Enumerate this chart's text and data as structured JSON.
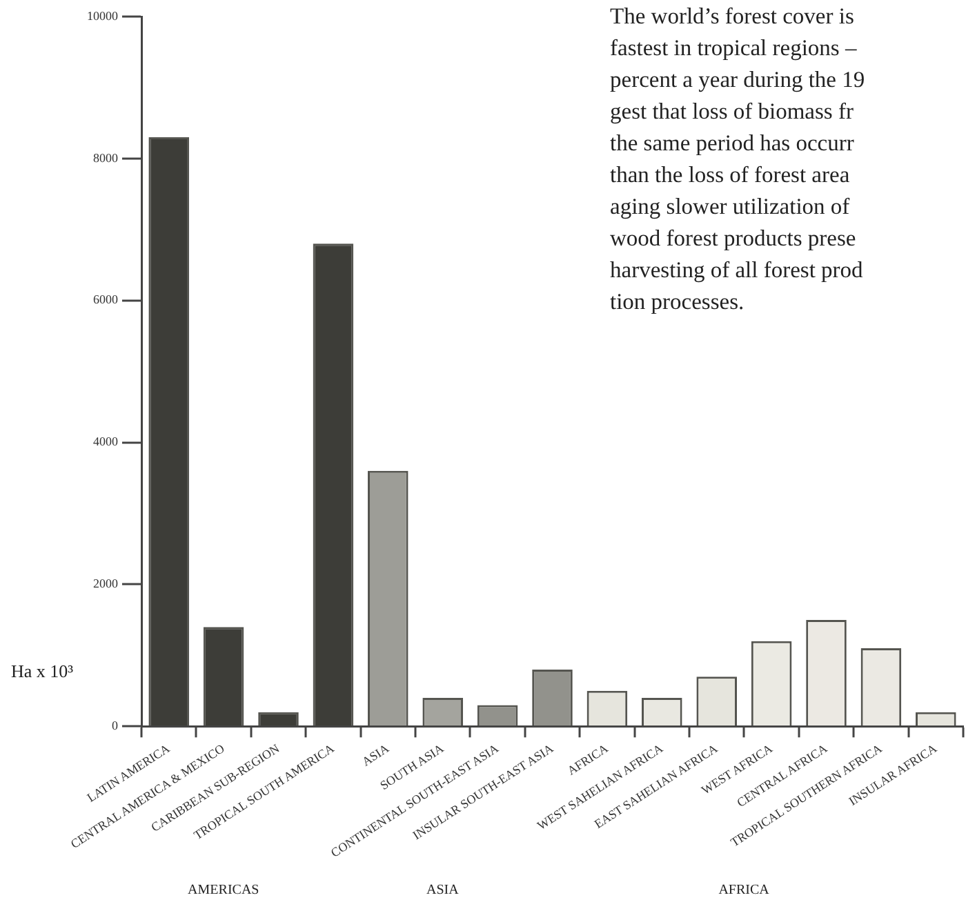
{
  "chart_data": {
    "type": "bar",
    "ylabel": "Ha x 10³",
    "categories": [
      "LATIN AMERICA",
      "CENTRAL AMERICA & MEXICO",
      "CARIBBEAN SUB-REGION",
      "TROPICAL SOUTH AMERICA",
      "ASIA",
      "SOUTH ASIA",
      "CONTINENTAL SOUTH-EAST ASIA",
      "INSULAR SOUTH-EAST ASIA",
      "AFRICA",
      "WEST SAHELIAN AFRICA",
      "EAST SAHELIAN AFRICA",
      "WEST AFRICA",
      "CENTRAL AFRICA",
      "TROPICAL SOUTHERN AFRICA",
      "INSULAR AFRICA"
    ],
    "values": [
      8300,
      1400,
      200,
      6800,
      3600,
      400,
      300,
      800,
      500,
      400,
      700,
      1200,
      1500,
      1100,
      200
    ],
    "colors": [
      "#3d3d38",
      "#3d3d38",
      "#3d3d38",
      "#3d3d38",
      "#9d9d97",
      "#a4a49e",
      "#92928c",
      "#92928c",
      "#e6e5dd",
      "#e9e8e1",
      "#e6e5dd",
      "#ebeae3",
      "#ece9e3",
      "#ebe9e3",
      "#e6e5dd"
    ],
    "ylim": [
      0,
      10000
    ],
    "yticks": [
      0,
      2000,
      4000,
      6000,
      8000,
      10000
    ],
    "grid": false,
    "legend": false,
    "annotations": [
      "AMERICAS",
      "ASIA",
      "AFRICA",
      "The world’s forest cover is\nfastest in tropical regions –\npercent a year during the 19\ngest that loss of biomass fr\nthe same period has occurr\nthan the loss of forest area\naging slower utilization of\nwood forest products prese\nharvesting of all forest prod\ntion processes."
    ]
  }
}
